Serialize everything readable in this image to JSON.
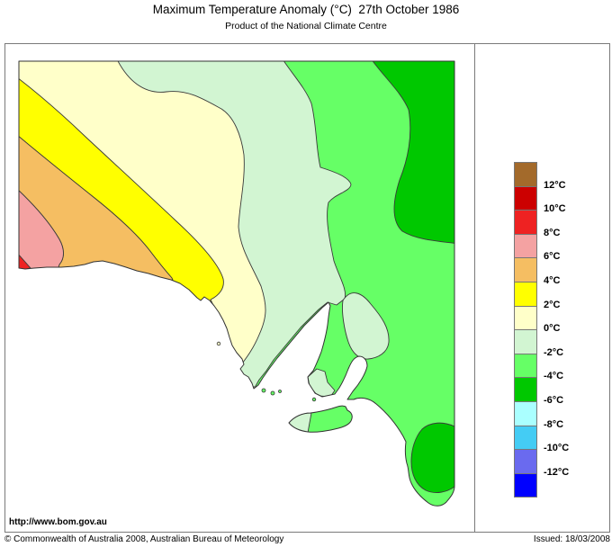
{
  "title": "Maximum Temperature Anomaly (°C)  27th October 1986",
  "subtitle": "Product of the National Climate Centre",
  "footer": {
    "url": "http://www.bom.gov.au",
    "copyright": "© Commonwealth of Australia 2008, Australian Bureau of Meteorology",
    "issued": "Issued: 18/03/2008"
  },
  "colors": {
    "brown": "#a36a2b",
    "dark_red": "#cc0000",
    "red": "#ee2222",
    "pink": "#f4a2a2",
    "orange": "#f5be62",
    "yellow": "#ffff00",
    "cream": "#ffffc9",
    "pale_green": "#d2f5d2",
    "green": "#66ff66",
    "dark_green": "#00c800",
    "pale_cyan": "#aaffff",
    "cyan": "#44ccf4",
    "blue_purple": "#6a6aef",
    "blue": "#0000ff",
    "outline": "#3a3a3a",
    "coast": "#333333",
    "sea": "#ffffff"
  },
  "legend": {
    "units": "°C",
    "color_keys": [
      "brown",
      "dark_red",
      "red",
      "pink",
      "orange",
      "yellow",
      "cream",
      "pale_green",
      "green",
      "dark_green",
      "pale_cyan",
      "cyan",
      "blue_purple",
      "blue"
    ],
    "labels": [
      "12°C",
      "10°C",
      "8°C",
      "6°C",
      "4°C",
      "2°C",
      "0°C",
      "-2°C",
      "-4°C",
      "-6°C",
      "-8°C",
      "-10°C",
      "-12°C"
    ]
  }
}
